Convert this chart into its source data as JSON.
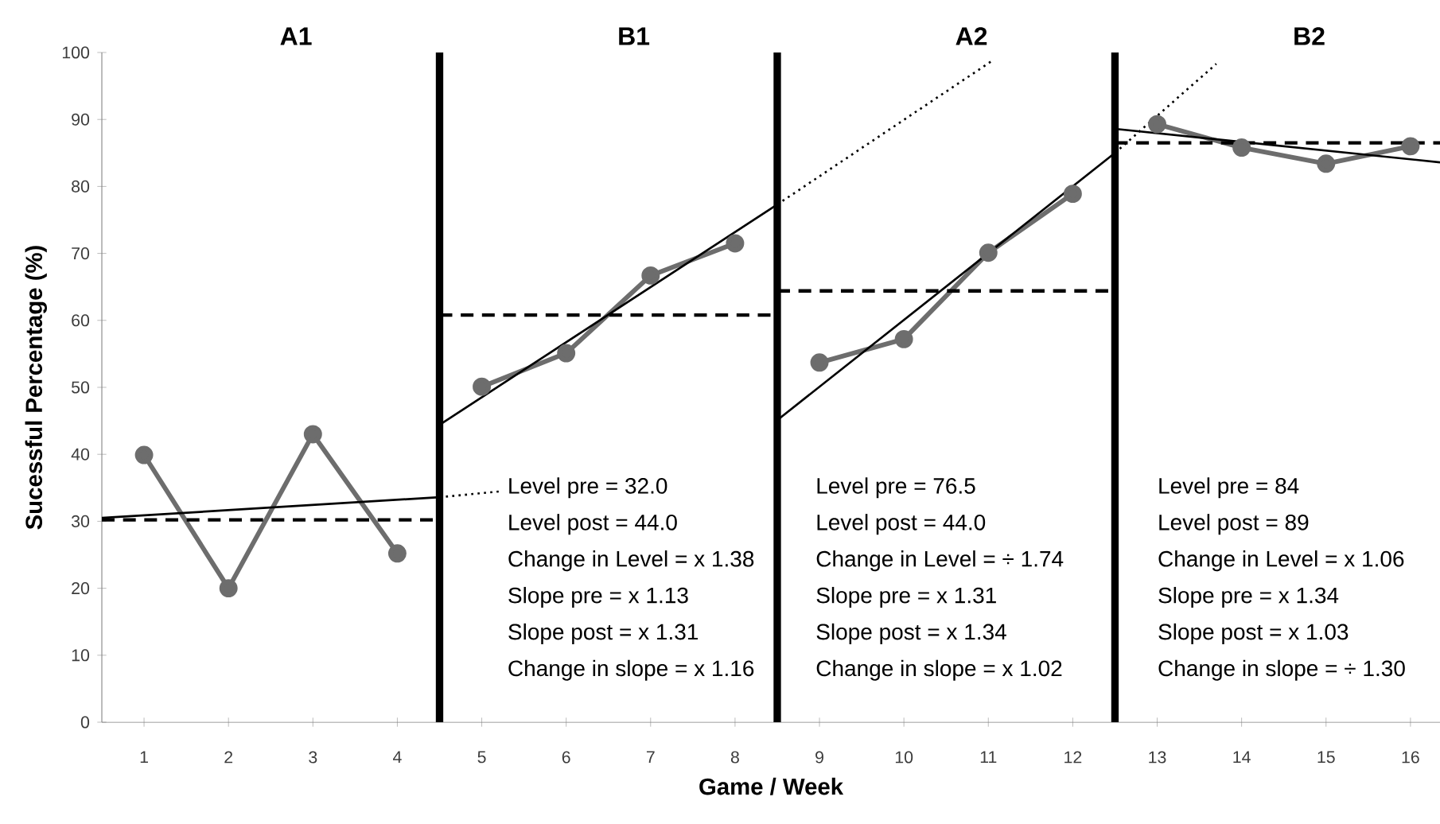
{
  "chart_data": {
    "type": "line",
    "xlabel": "Game / Week",
    "ylabel": "Sucessful Percentage (%)",
    "xlim": [
      0.5,
      16.35
    ],
    "ylim": [
      0,
      100
    ],
    "xticks": [
      1,
      2,
      3,
      4,
      5,
      6,
      7,
      8,
      9,
      10,
      11,
      12,
      13,
      14,
      15,
      16
    ],
    "yticks": [
      0,
      10,
      20,
      30,
      40,
      50,
      60,
      70,
      80,
      90,
      100
    ],
    "grid": false,
    "series": [
      {
        "color": "#6d6d6d",
        "marker": "circle",
        "line_style": "solid",
        "x": [
          1,
          2,
          3,
          4
        ],
        "values": [
          39.9,
          20,
          43,
          25.2
        ]
      },
      {
        "color": "#6d6d6d",
        "marker": "circle",
        "line_style": "solid",
        "x": [
          5,
          6,
          7,
          8
        ],
        "values": [
          50.1,
          55.1,
          66.7,
          71.5
        ]
      },
      {
        "color": "#6d6d6d",
        "marker": "circle",
        "line_style": "solid",
        "x": [
          9,
          10,
          11,
          12
        ],
        "values": [
          53.7,
          57.2,
          70.1,
          78.9
        ]
      },
      {
        "color": "#6d6d6d",
        "marker": "circle",
        "line_style": "solid",
        "x": [
          13,
          14,
          15,
          16
        ],
        "values": [
          89.3,
          85.8,
          83.4,
          86
        ]
      },
      {
        "color": "#000000",
        "marker": "none",
        "line_style": "solid",
        "x": [
          0.5,
          4.5
        ],
        "values": [
          30.5,
          33.6
        ]
      },
      {
        "color": "#000000",
        "marker": "none",
        "line_style": "dotted",
        "x": [
          4.5,
          5.25
        ],
        "values": [
          33.6,
          34.5
        ]
      },
      {
        "color": "#000000",
        "marker": "none",
        "line_style": "solid",
        "x": [
          4.5,
          8.5
        ],
        "values": [
          44.4,
          77.3
        ]
      },
      {
        "color": "#000000",
        "marker": "none",
        "line_style": "dotted",
        "x": [
          8.5,
          11.05
        ],
        "values": [
          77.3,
          98.8
        ]
      },
      {
        "color": "#000000",
        "marker": "none",
        "line_style": "solid",
        "x": [
          8.5,
          12.5
        ],
        "values": [
          45.1,
          85
        ]
      },
      {
        "color": "#000000",
        "marker": "none",
        "line_style": "dotted",
        "x": [
          12.5,
          13.7
        ],
        "values": [
          85,
          98.3
        ]
      },
      {
        "color": "#000000",
        "marker": "none",
        "line_style": "solid",
        "x": [
          12.5,
          16.35
        ],
        "values": [
          88.6,
          83.6
        ]
      },
      {
        "color": "#000000",
        "marker": "none",
        "line_style": "dashed",
        "x": [
          0.5,
          4.5
        ],
        "values": [
          30.2,
          30.2
        ]
      },
      {
        "color": "#000000",
        "marker": "none",
        "line_style": "dashed",
        "x": [
          4.5,
          8.5
        ],
        "values": [
          60.8,
          60.8
        ]
      },
      {
        "color": "#000000",
        "marker": "none",
        "line_style": "dashed",
        "x": [
          8.5,
          12.5
        ],
        "values": [
          64.4,
          64.4
        ]
      },
      {
        "color": "#000000",
        "marker": "none",
        "line_style": "dashed",
        "x": [
          12.5,
          16.35
        ],
        "values": [
          86.5,
          86.5
        ]
      }
    ],
    "ref_lines": [
      {
        "axis": "x",
        "value": 4.5,
        "color": "#000000"
      },
      {
        "axis": "x",
        "value": 8.5,
        "color": "#000000"
      },
      {
        "axis": "x",
        "value": 12.5,
        "color": "#000000"
      }
    ],
    "annotations": [
      "A1",
      "B1",
      "A2",
      "B2",
      "Level pre = 32.0",
      "Level post = 44.0",
      "Change in Level = x 1.38",
      "Slope pre = x 1.13",
      "Slope post = x 1.31",
      "Change in slope = x 1.16",
      "Level pre = 76.5",
      "Level post = 44.0",
      "Change in Level = ÷ 1.74",
      "Slope pre = x 1.31",
      "Slope post = x 1.34",
      "Change in slope = x 1.02",
      "Level pre = 84",
      "Level post = 89",
      "Change in Level = x 1.06",
      "Slope pre = x 1.34",
      "Slope post = x 1.03",
      "Change in slope = ÷ 1.30"
    ]
  }
}
